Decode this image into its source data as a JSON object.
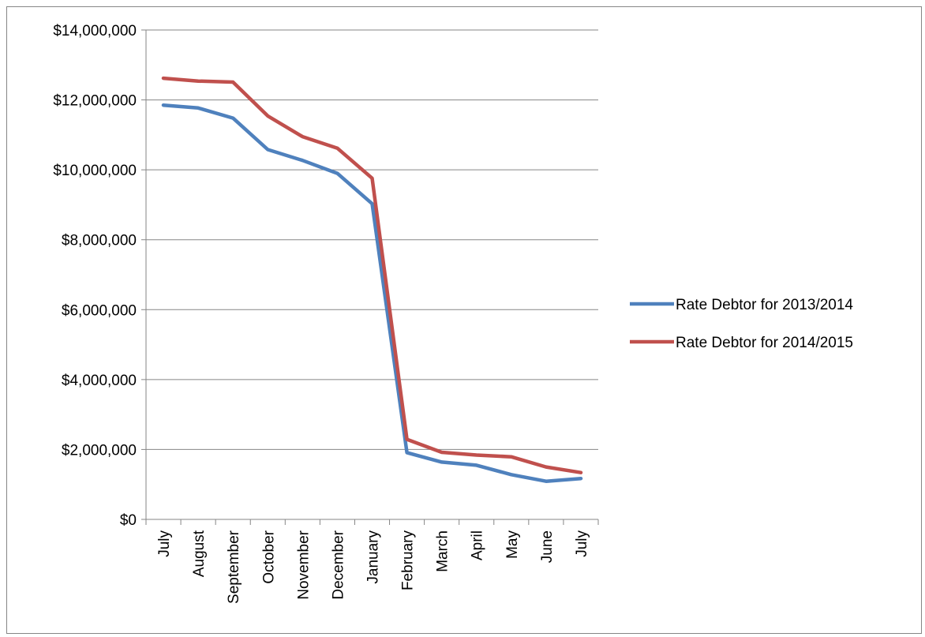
{
  "chart_data": {
    "type": "line",
    "title": "",
    "xlabel": "",
    "ylabel": "",
    "categories": [
      "July",
      "August",
      "September",
      "October",
      "November",
      "December",
      "January",
      "February",
      "March",
      "April",
      "May",
      "June",
      "July"
    ],
    "y_ticks": [
      "$0",
      "$2,000,000",
      "$4,000,000",
      "$6,000,000",
      "$8,000,000",
      "$10,000,000",
      "$12,000,000",
      "$14,000,000"
    ],
    "ylim": [
      0,
      14000000
    ],
    "grid": true,
    "legend_position": "right",
    "series": [
      {
        "name": "Rate Debtor for 2013/2014",
        "color": "#4f81bd",
        "values": [
          11850000,
          11770000,
          11480000,
          10580000,
          10270000,
          9900000,
          9030000,
          1910000,
          1640000,
          1550000,
          1280000,
          1090000,
          1170000
        ]
      },
      {
        "name": "Rate Debtor for 2014/2015",
        "color": "#c0504d",
        "values": [
          12620000,
          12540000,
          12510000,
          11540000,
          10950000,
          10620000,
          9760000,
          2290000,
          1920000,
          1840000,
          1790000,
          1500000,
          1340000
        ]
      }
    ]
  }
}
